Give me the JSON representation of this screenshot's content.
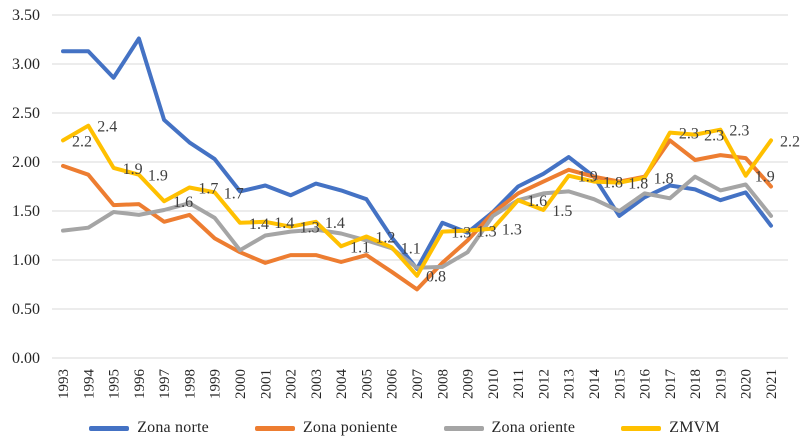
{
  "chart_data": {
    "type": "line",
    "title": "",
    "xlabel": "",
    "ylabel": "",
    "x": [
      1993,
      1994,
      1995,
      1996,
      1997,
      1998,
      1999,
      2000,
      2001,
      2002,
      2003,
      2004,
      2005,
      2006,
      2007,
      2008,
      2009,
      2010,
      2011,
      2012,
      2013,
      2014,
      2015,
      2016,
      2017,
      2018,
      2019,
      2020,
      2021
    ],
    "ylim": [
      0,
      3.5
    ],
    "ytick_step": 0.5,
    "ytick_labels": [
      "0.00",
      "0.50",
      "1.00",
      "1.50",
      "2.00",
      "2.50",
      "3.00",
      "3.50"
    ],
    "grid": true,
    "legend_position": "bottom",
    "gridline_color": "#d9d9d9",
    "axis_label_color": "#262626",
    "data_label_color": "#3f3f3f",
    "series": [
      {
        "name": "Zona norte",
        "color": "#4472C4",
        "values": [
          3.13,
          3.13,
          2.86,
          3.26,
          2.43,
          2.2,
          2.03,
          1.7,
          1.76,
          1.66,
          1.78,
          1.71,
          1.62,
          1.23,
          0.91,
          1.38,
          1.28,
          1.49,
          1.75,
          1.88,
          2.05,
          1.85,
          1.45,
          1.64,
          1.76,
          1.72,
          1.61,
          1.69,
          1.35
        ]
      },
      {
        "name": "Zona poniente",
        "color": "#ED7D31",
        "values": [
          1.96,
          1.87,
          1.56,
          1.57,
          1.39,
          1.46,
          1.22,
          1.08,
          0.97,
          1.05,
          1.05,
          0.98,
          1.05,
          0.88,
          0.7,
          0.97,
          1.2,
          1.48,
          1.68,
          1.8,
          1.92,
          1.85,
          1.8,
          1.85,
          2.22,
          2.02,
          2.07,
          2.04,
          1.75
        ]
      },
      {
        "name": "Zona oriente",
        "color": "#A5A5A5",
        "values": [
          1.3,
          1.33,
          1.49,
          1.46,
          1.51,
          1.58,
          1.43,
          1.1,
          1.25,
          1.29,
          1.31,
          1.27,
          1.2,
          1.12,
          0.92,
          0.93,
          1.08,
          1.45,
          1.61,
          1.68,
          1.7,
          1.62,
          1.5,
          1.68,
          1.63,
          1.85,
          1.71,
          1.77,
          1.45
        ]
      },
      {
        "name": "ZMVM",
        "color": "#FFC000",
        "values": [
          2.22,
          2.37,
          1.94,
          1.87,
          1.6,
          1.74,
          1.69,
          1.38,
          1.39,
          1.34,
          1.39,
          1.14,
          1.24,
          1.13,
          0.84,
          1.29,
          1.3,
          1.32,
          1.61,
          1.51,
          1.86,
          1.8,
          1.79,
          1.84,
          2.3,
          2.28,
          2.33,
          1.86,
          2.22
        ],
        "point_labels": [
          "2.2",
          "2.4",
          "1.9",
          "1.9",
          "1.6",
          "1.7",
          "1.7",
          "1.4",
          "1.4",
          "1.3",
          "1.4",
          "1.1",
          "1.2",
          "1.1",
          "0.8",
          "1.3",
          "1.3",
          "1.3",
          "1.6",
          "1.5",
          "1.9",
          "1.8",
          "1.8",
          "1.8",
          "2.3",
          "2.3",
          "2.3",
          "1.9",
          "2.2"
        ]
      }
    ]
  },
  "legend": {
    "items": [
      {
        "label": "Zona norte",
        "color": "#4472C4"
      },
      {
        "label": "Zona poniente",
        "color": "#ED7D31"
      },
      {
        "label": "Zona oriente",
        "color": "#A5A5A5"
      },
      {
        "label": "ZMVM",
        "color": "#FFC000"
      }
    ]
  }
}
